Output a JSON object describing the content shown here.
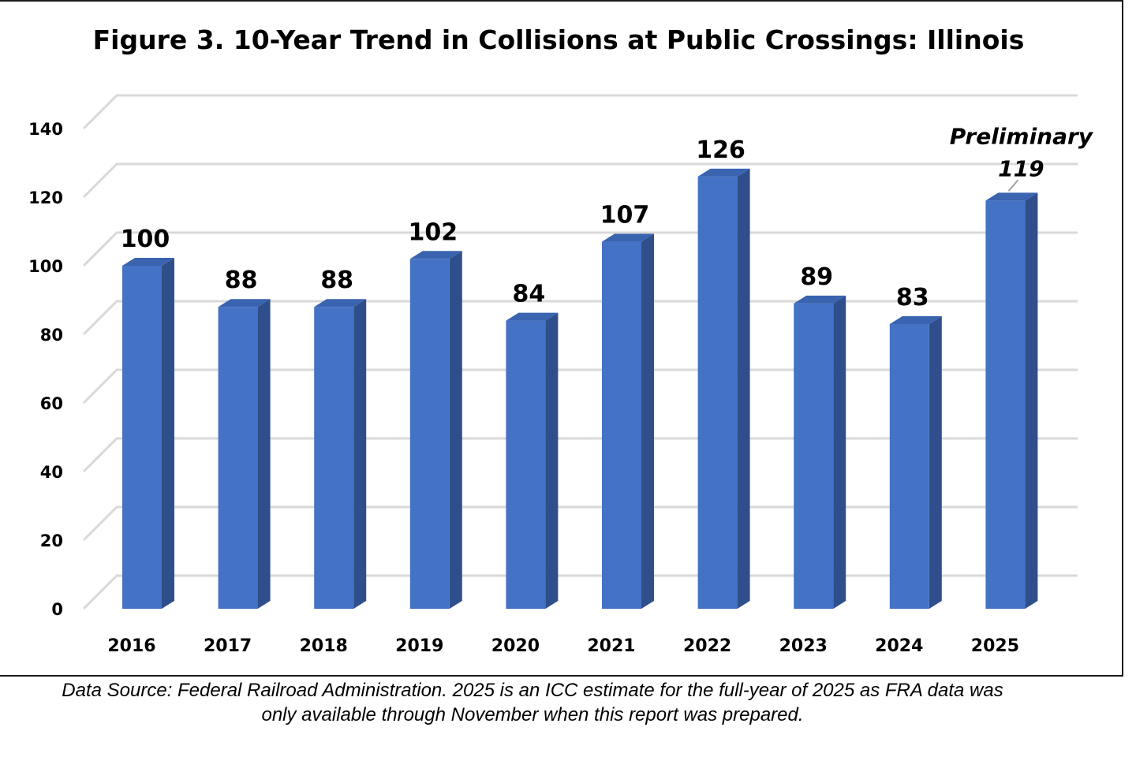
{
  "chart_data": {
    "type": "bar",
    "title": "Figure 3.  10-Year Trend in Collisions at Public Crossings:  Illinois",
    "categories": [
      "2016",
      "2017",
      "2018",
      "2019",
      "2020",
      "2021",
      "2022",
      "2023",
      "2024",
      "2025"
    ],
    "values": [
      100,
      88,
      88,
      102,
      84,
      107,
      126,
      89,
      83,
      119
    ],
    "ylim": [
      0,
      140
    ],
    "yticks": [
      0,
      20,
      40,
      60,
      80,
      100,
      120,
      140
    ],
    "xlabel": "",
    "ylabel": "",
    "grid": true,
    "legend": "none",
    "bar_color": "#4472C4",
    "bar_side_color": "#2F4F8C",
    "bar_top_color": "#3A63B0",
    "annotation": {
      "category": "2025",
      "label": "Preliminary",
      "value_label": "119"
    }
  },
  "footnote": {
    "line1": "Data Source: Federal Railroad Administration.  2025 is an ICC estimate for the full-year of 2025 as FRA data was",
    "line2": "only available through November when this report was prepared."
  }
}
